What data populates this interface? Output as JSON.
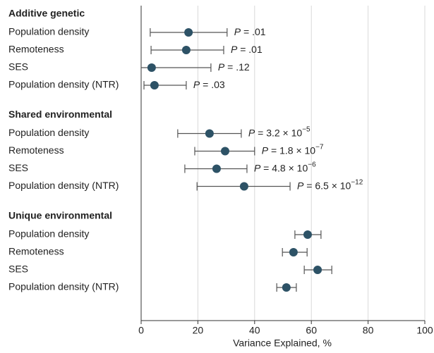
{
  "chart_data": {
    "type": "forest",
    "xlabel": "Variance Explained, %",
    "xlim": [
      0,
      100
    ],
    "xticks": [
      0,
      20,
      40,
      60,
      80,
      100
    ],
    "grid": true,
    "color": "#2d5266",
    "whisker_color": "#555555",
    "groups": [
      {
        "title": "Additive genetic",
        "categories": [
          "Population density",
          "Remoteness",
          "SES",
          "Population density (NTR)"
        ],
        "values": [
          16.7,
          15.9,
          3.7,
          4.7
        ],
        "lower": [
          3.2,
          3.5,
          0,
          1.0
        ],
        "upper": [
          30.3,
          29.1,
          24.6,
          15.9
        ],
        "p_labels": [
          {
            "symbol": "P",
            "text": " = .01"
          },
          {
            "symbol": "P",
            "text": " = .01"
          },
          {
            "symbol": "P",
            "text": " = .12"
          },
          {
            "symbol": "P",
            "text": " = .03"
          }
        ]
      },
      {
        "title": "Shared environmental",
        "categories": [
          "Population density",
          "Remoteness",
          "SES",
          "Population density (NTR)"
        ],
        "values": [
          24.1,
          29.6,
          26.6,
          36.3
        ],
        "lower": [
          12.9,
          18.9,
          15.4,
          19.7
        ],
        "upper": [
          35.3,
          40.0,
          37.3,
          52.5
        ],
        "p_labels": [
          {
            "symbol": "P",
            "text": " = 3.2 × 10",
            "exponent": "−5"
          },
          {
            "symbol": "P",
            "text": " = 1.8 × 10",
            "exponent": "−7"
          },
          {
            "symbol": "P",
            "text": " = 4.8 × 10",
            "exponent": "−6"
          },
          {
            "symbol": "P",
            "text": " = 6.5 × 10",
            "exponent": "−12"
          }
        ]
      },
      {
        "title": "Unique environmental",
        "categories": [
          "Population density",
          "Remoteness",
          "SES",
          "Population density (NTR)"
        ],
        "values": [
          58.7,
          53.7,
          62.2,
          51.2
        ],
        "lower": [
          54.2,
          49.8,
          57.5,
          47.8
        ],
        "upper": [
          63.4,
          58.5,
          67.2,
          54.7
        ]
      }
    ]
  }
}
